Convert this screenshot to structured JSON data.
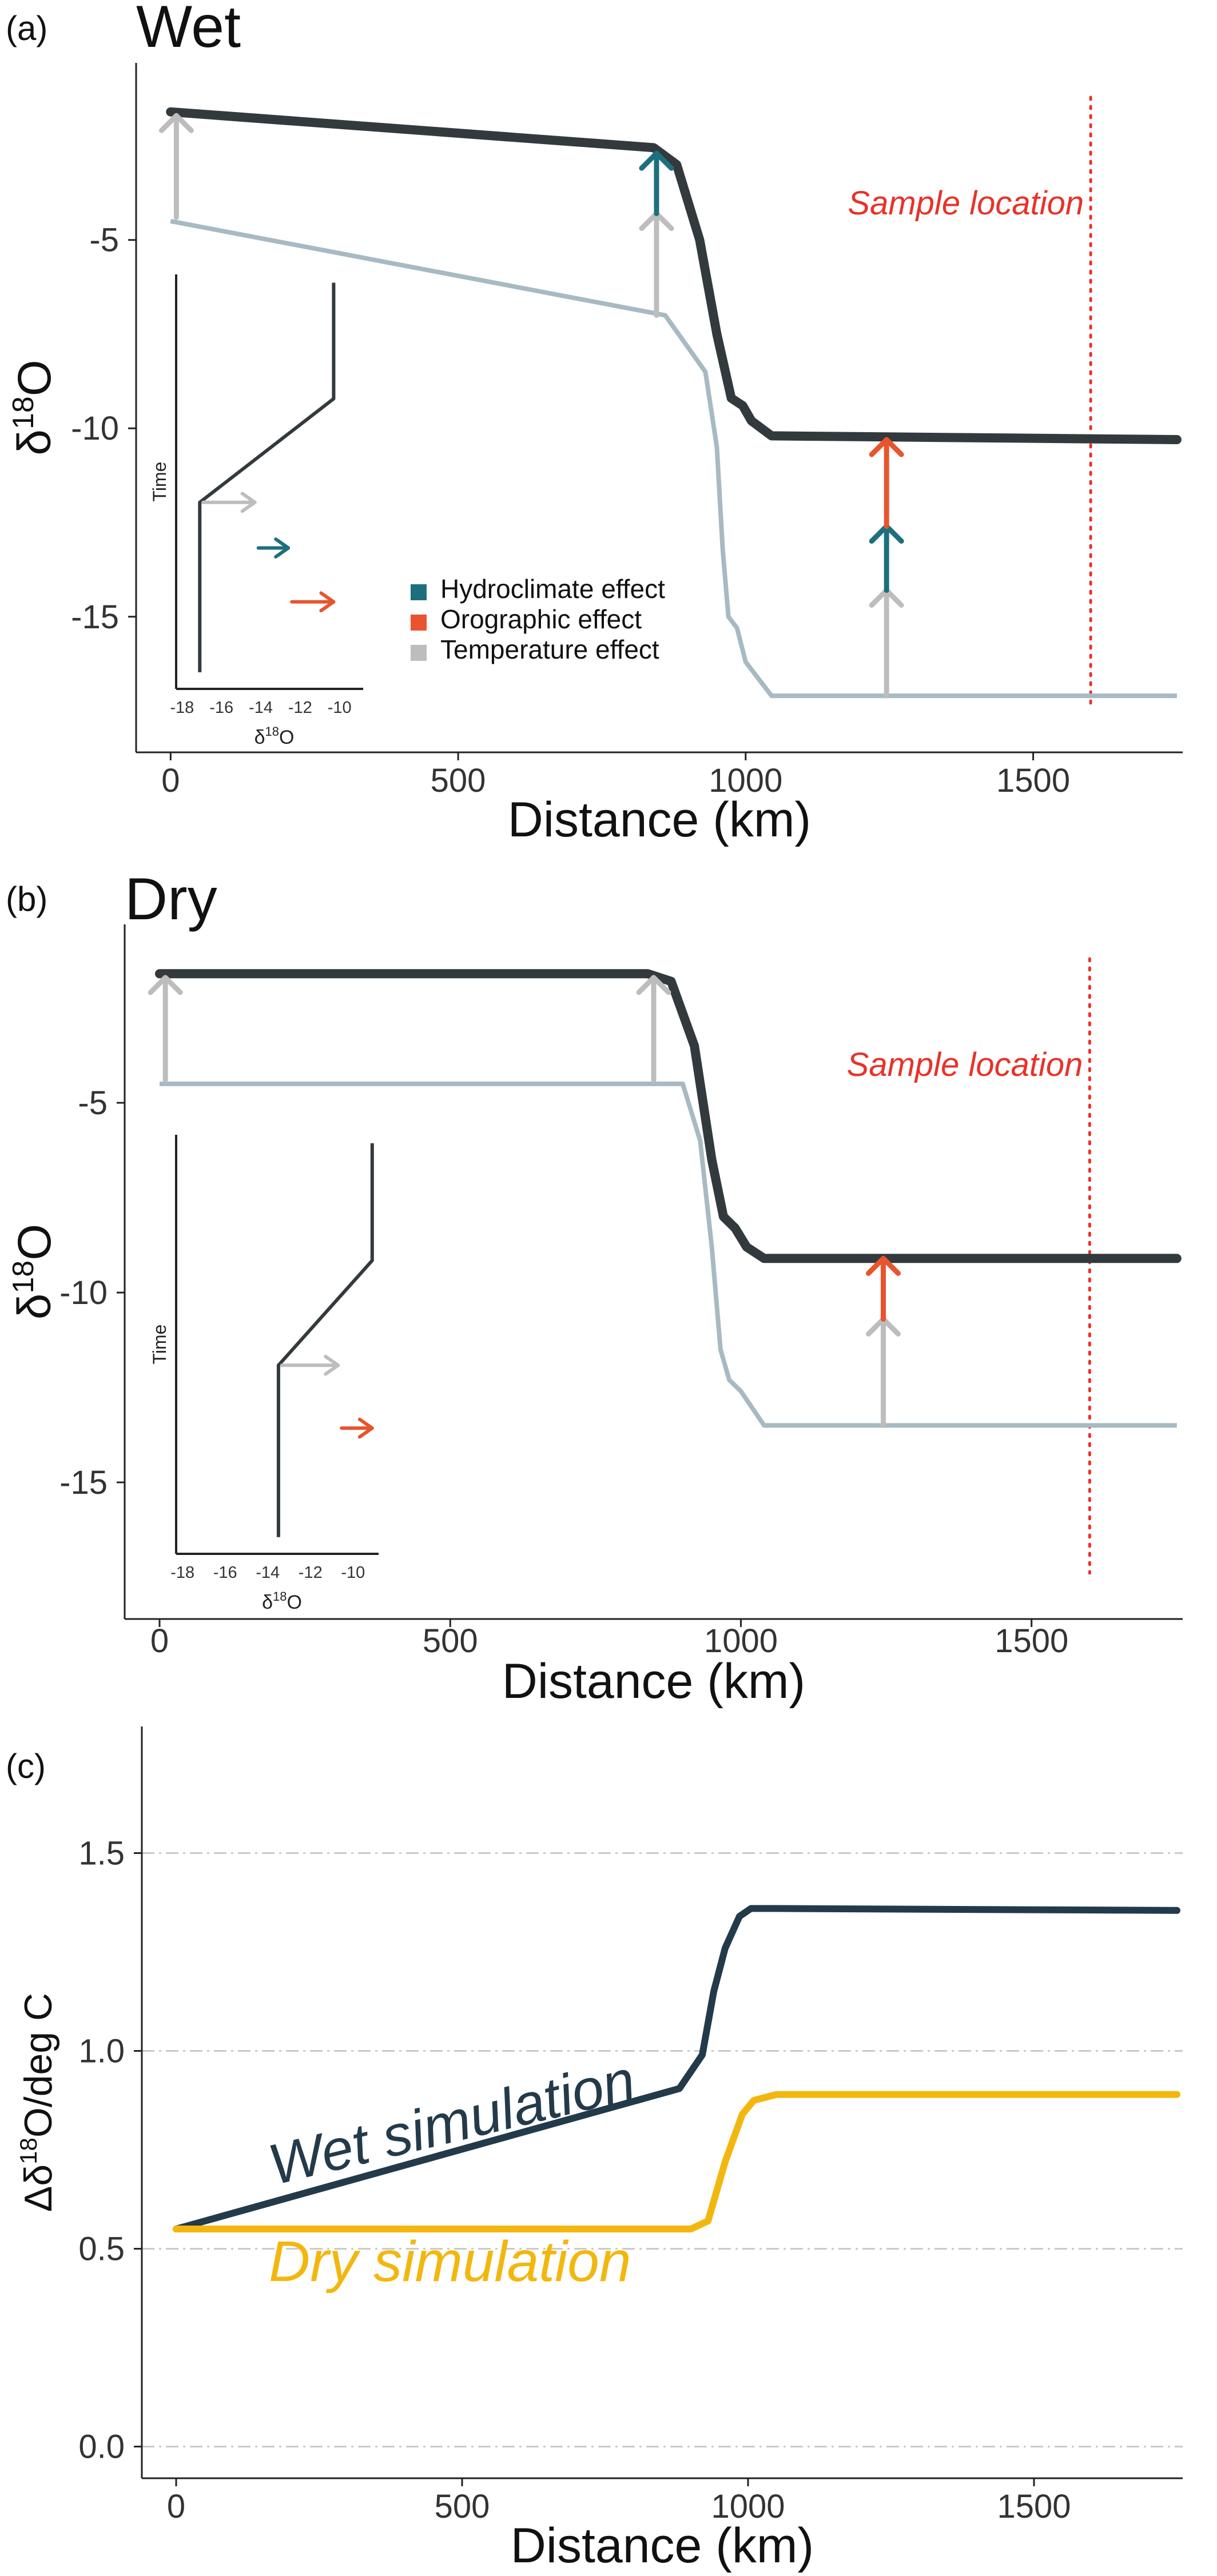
{
  "panels": [
    {
      "tag": "(a)",
      "title": "Wet",
      "xlabel": "Distance (km)",
      "ylabel_main": "δ",
      "ylabel_sup": "18",
      "ylabel_tail": "O",
      "xlim": [
        -60,
        1760
      ],
      "ylim": [
        -18.6,
        -0.3
      ],
      "xticks": [
        0,
        500,
        1000,
        1500
      ],
      "yticks": [
        -5,
        -10,
        -15
      ],
      "dark_line": [
        [
          0,
          -1.6
        ],
        [
          840,
          -2.55
        ],
        [
          880,
          -3.0
        ],
        [
          920,
          -5.0
        ],
        [
          950,
          -7.5
        ],
        [
          975,
          -9.2
        ],
        [
          995,
          -9.4
        ],
        [
          1010,
          -9.8
        ],
        [
          1045,
          -10.2
        ],
        [
          1750,
          -10.3
        ]
      ],
      "light_line": [
        [
          0,
          -4.5
        ],
        [
          860,
          -7.0
        ],
        [
          930,
          -8.5
        ],
        [
          950,
          -10.5
        ],
        [
          960,
          -13.2
        ],
        [
          970,
          -15.0
        ],
        [
          985,
          -15.3
        ],
        [
          1000,
          -16.2
        ],
        [
          1045,
          -17.1
        ],
        [
          1750,
          -17.1
        ]
      ],
      "sample_x": 1600,
      "sample_label": "Sample location",
      "arrows": [
        {
          "x": 10,
          "y0": -4.4,
          "y1": -1.7,
          "color": "#bdbdbd"
        },
        {
          "x": 845,
          "y0": -7.0,
          "y1": -4.3,
          "color": "#bdbdbd"
        },
        {
          "x": 845,
          "y0": -4.3,
          "y1": -2.7,
          "color": "#1e6f7d"
        },
        {
          "x": 1245,
          "y0": -17.1,
          "y1": -14.3,
          "color": "#bdbdbd"
        },
        {
          "x": 1245,
          "y0": -14.3,
          "y1": -12.6,
          "color": "#1e6f7d"
        },
        {
          "x": 1245,
          "y0": -12.6,
          "y1": -10.3,
          "color": "#e8542e"
        }
      ],
      "legend": [
        {
          "label": "Hydroclimate effect",
          "color": "#1e6f7d"
        },
        {
          "label": "Orographic effect",
          "color": "#e8542e"
        },
        {
          "label": "Temperature effect",
          "color": "#bdbdbd"
        }
      ],
      "inset": {
        "ylabel": "Time",
        "xlabel_main": "δ",
        "xlabel_sup": "18",
        "xlabel_tail": "O",
        "xlim": [
          -18.3,
          -8.8
        ],
        "xticks": [
          "-18",
          "-16",
          "-14",
          "-12",
          "-10"
        ],
        "line": [
          [
            -17.1,
            0.04
          ],
          [
            -17.1,
            0.45
          ],
          [
            -10.3,
            0.7
          ],
          [
            -10.3,
            0.98
          ]
        ],
        "arrows": [
          {
            "x0": -17.1,
            "x1": -14.3,
            "t": 0.45,
            "color": "#bdbdbd"
          },
          {
            "x0": -14.3,
            "x1": -12.6,
            "t": 0.34,
            "color": "#1e6f7d"
          },
          {
            "x0": -12.6,
            "x1": -10.3,
            "t": 0.21,
            "color": "#e8542e"
          }
        ]
      }
    },
    {
      "tag": "(b)",
      "title": "Dry",
      "xlabel": "Distance (km)",
      "ylabel_main": "δ",
      "ylabel_sup": "18",
      "ylabel_tail": "O",
      "xlim": [
        -60,
        1760
      ],
      "ylim": [
        -18.6,
        -0.3
      ],
      "xticks": [
        0,
        500,
        1000,
        1500
      ],
      "yticks": [
        -5,
        -10,
        -15
      ],
      "dark_line": [
        [
          0,
          -1.6
        ],
        [
          840,
          -1.6
        ],
        [
          880,
          -1.8
        ],
        [
          920,
          -3.5
        ],
        [
          950,
          -6.5
        ],
        [
          970,
          -8.0
        ],
        [
          990,
          -8.3
        ],
        [
          1010,
          -8.8
        ],
        [
          1040,
          -9.1
        ],
        [
          1750,
          -9.1
        ]
      ],
      "light_line": [
        [
          0,
          -4.5
        ],
        [
          900,
          -4.5
        ],
        [
          930,
          -6.0
        ],
        [
          950,
          -8.8
        ],
        [
          965,
          -11.5
        ],
        [
          980,
          -12.3
        ],
        [
          1000,
          -12.6
        ],
        [
          1040,
          -13.5
        ],
        [
          1750,
          -13.5
        ]
      ],
      "sample_x": 1600,
      "sample_label": "Sample location",
      "arrows": [
        {
          "x": 10,
          "y0": -4.4,
          "y1": -1.7,
          "color": "#bdbdbd"
        },
        {
          "x": 850,
          "y0": -4.4,
          "y1": -1.7,
          "color": "#bdbdbd"
        },
        {
          "x": 1245,
          "y0": -13.5,
          "y1": -10.7,
          "color": "#bdbdbd"
        },
        {
          "x": 1245,
          "y0": -10.7,
          "y1": -9.1,
          "color": "#e8542e"
        }
      ],
      "legend": [],
      "inset": {
        "ylabel": "Time",
        "xlabel_main": "δ",
        "xlabel_sup": "18",
        "xlabel_tail": "O",
        "xlim": [
          -18.3,
          -8.8
        ],
        "xticks": [
          "-18",
          "-16",
          "-14",
          "-12",
          "-10"
        ],
        "line": [
          [
            -13.5,
            0.04
          ],
          [
            -13.5,
            0.45
          ],
          [
            -9.1,
            0.7
          ],
          [
            -9.1,
            0.98
          ]
        ],
        "arrows": [
          {
            "x0": -13.5,
            "x1": -10.7,
            "t": 0.45,
            "color": "#bdbdbd"
          },
          {
            "x0": -10.7,
            "x1": -9.1,
            "t": 0.3,
            "color": "#e8542e"
          }
        ]
      }
    }
  ],
  "panel_c": {
    "tag": "(c)",
    "xlabel": "Distance (km)",
    "ylabel_a": "Δδ",
    "ylabel_sup": "18",
    "ylabel_b": "O/deg C",
    "xlim": [
      -60,
      1760
    ],
    "ylim": [
      -0.08,
      1.82
    ],
    "xticks": [
      0,
      500,
      1000,
      1500
    ],
    "yticks": [
      0.0,
      0.5,
      1.0,
      1.5
    ],
    "ytick_labels": [
      "0.0",
      "0.5",
      "1.0",
      "1.5"
    ],
    "wet_label": "Wet simulation",
    "dry_label": "Dry simulation"
  },
  "chart_data": [
    {
      "type": "line",
      "panel": "(a)",
      "title": "Wet",
      "xlabel": "Distance (km)",
      "ylabel": "δ18O",
      "xlim": [
        -60,
        1760
      ],
      "ylim": [
        -18.6,
        -0.3
      ],
      "series": [
        {
          "x": [
            0,
            840,
            880,
            920,
            950,
            975,
            995,
            1010,
            1045,
            1750
          ],
          "y": [
            -1.6,
            -2.55,
            -3.0,
            -5.0,
            -7.5,
            -9.2,
            -9.4,
            -9.8,
            -10.2,
            -10.3
          ]
        },
        {
          "x": [
            0,
            860,
            930,
            950,
            960,
            970,
            985,
            1000,
            1045,
            1750
          ],
          "y": [
            -4.5,
            -7.0,
            -8.5,
            -10.5,
            -13.2,
            -15.0,
            -15.3,
            -16.2,
            -17.1,
            -17.1
          ]
        }
      ],
      "annotations": [
        "Sample location",
        "Hydroclimate effect",
        "Orographic effect",
        "Temperature effect"
      ]
    },
    {
      "type": "line",
      "panel": "(b)",
      "title": "Dry",
      "xlabel": "Distance (km)",
      "ylabel": "δ18O",
      "xlim": [
        -60,
        1760
      ],
      "ylim": [
        -18.6,
        -0.3
      ],
      "series": [
        {
          "x": [
            0,
            840,
            880,
            920,
            950,
            970,
            990,
            1010,
            1040,
            1750
          ],
          "y": [
            -1.6,
            -1.6,
            -1.8,
            -3.5,
            -6.5,
            -8.0,
            -8.3,
            -8.8,
            -9.1,
            -9.1
          ]
        },
        {
          "x": [
            0,
            900,
            930,
            950,
            965,
            980,
            1000,
            1040,
            1750
          ],
          "y": [
            -4.5,
            -4.5,
            -6.0,
            -8.8,
            -11.5,
            -12.3,
            -12.6,
            -13.5,
            -13.5
          ]
        }
      ],
      "annotations": [
        "Sample location"
      ]
    },
    {
      "type": "line",
      "panel": "(c)",
      "xlabel": "Distance (km)",
      "ylabel": "Δδ18O/deg C",
      "xlim": [
        -60,
        1760
      ],
      "ylim": [
        -0.08,
        1.82
      ],
      "grid": true,
      "series": [
        {
          "name": "Wet simulation",
          "color": "#233a4a",
          "x": [
            0,
            880,
            920,
            940,
            960,
            985,
            1005,
            1050,
            1750
          ],
          "y": [
            0.55,
            0.905,
            0.99,
            1.15,
            1.26,
            1.34,
            1.36,
            1.36,
            1.355
          ]
        },
        {
          "name": "Dry simulation",
          "color": "#f2b70f",
          "x": [
            0,
            900,
            930,
            960,
            990,
            1010,
            1050,
            1750
          ],
          "y": [
            0.55,
            0.55,
            0.57,
            0.72,
            0.84,
            0.875,
            0.89,
            0.89
          ]
        }
      ]
    }
  ]
}
